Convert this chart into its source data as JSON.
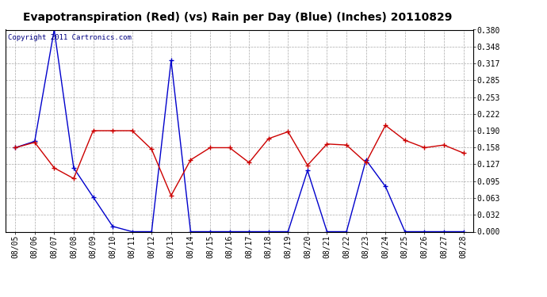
{
  "title": "Evapotranspiration (Red) (vs) Rain per Day (Blue) (Inches) 20110829",
  "copyright": "Copyright 2011 Cartronics.com",
  "x_labels": [
    "08/05",
    "08/06",
    "08/07",
    "08/08",
    "08/09",
    "08/10",
    "08/11",
    "08/12",
    "08/13",
    "08/14",
    "08/15",
    "08/16",
    "08/17",
    "08/18",
    "08/19",
    "08/20",
    "08/21",
    "08/22",
    "08/23",
    "08/24",
    "08/25",
    "08/26",
    "08/27",
    "08/28"
  ],
  "blue_data": [
    0.158,
    0.17,
    0.38,
    0.12,
    0.065,
    0.01,
    0.0,
    0.0,
    0.322,
    0.0,
    0.0,
    0.0,
    0.0,
    0.0,
    0.0,
    0.115,
    0.0,
    0.0,
    0.135,
    0.085,
    0.0,
    0.0,
    0.0,
    0.0
  ],
  "red_data": [
    0.158,
    0.168,
    0.12,
    0.1,
    0.19,
    0.19,
    0.19,
    0.155,
    0.068,
    0.135,
    0.158,
    0.158,
    0.13,
    0.175,
    0.188,
    0.125,
    0.165,
    0.163,
    0.13,
    0.2,
    0.172,
    0.158,
    0.163,
    0.148
  ],
  "ylim": [
    0.0,
    0.38
  ],
  "yticks": [
    0.0,
    0.032,
    0.063,
    0.095,
    0.127,
    0.158,
    0.19,
    0.222,
    0.253,
    0.285,
    0.317,
    0.348,
    0.38
  ],
  "bg_color": "#ffffff",
  "plot_bg_color": "#ffffff",
  "grid_color": "#aaaaaa",
  "blue_color": "#0000cc",
  "red_color": "#cc0000",
  "title_fontsize": 10,
  "copyright_fontsize": 6.5,
  "tick_fontsize": 7
}
